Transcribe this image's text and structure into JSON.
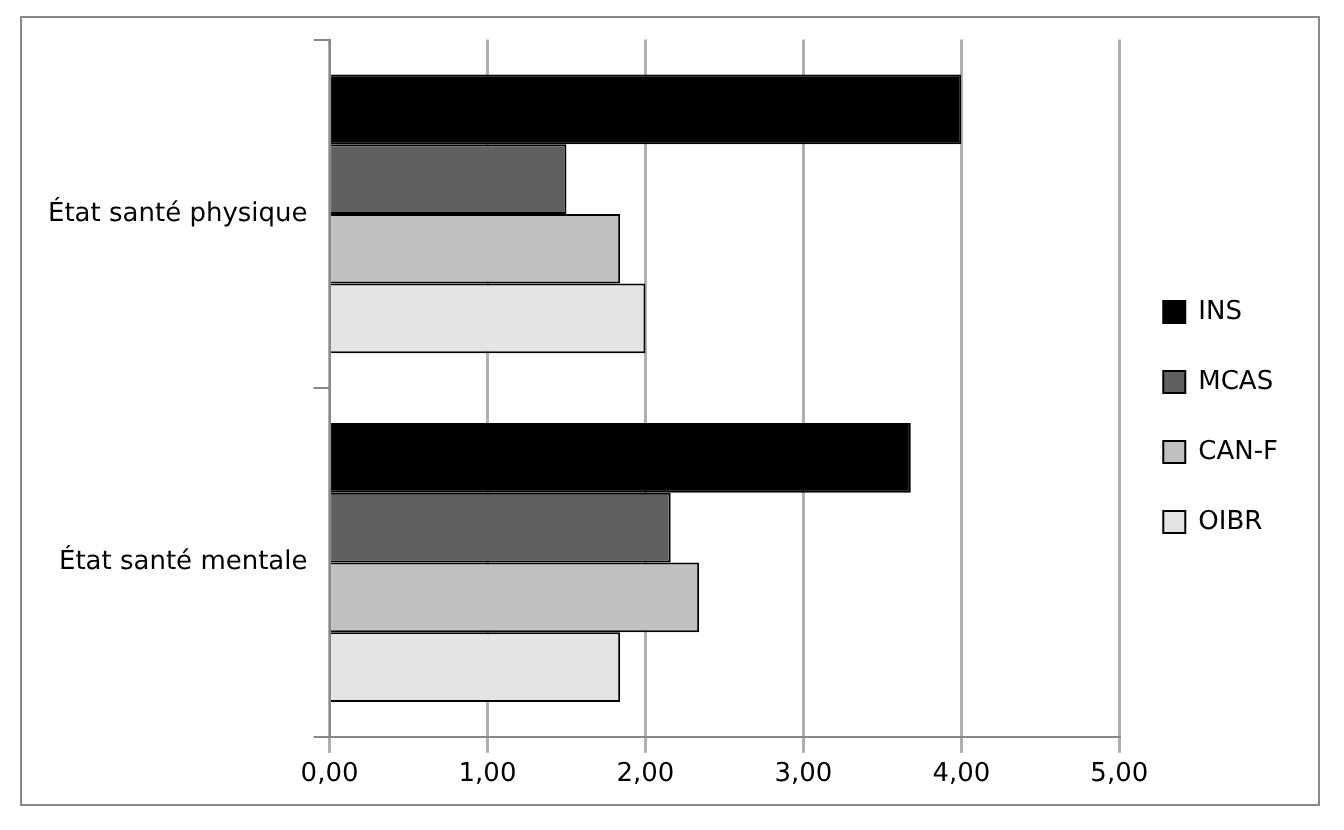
{
  "chart_data": {
    "type": "bar",
    "orientation": "horizontal",
    "categories": [
      "État santé physique",
      "État santé mentale"
    ],
    "series": [
      {
        "name": "INS",
        "color": "#000000",
        "values": [
          4.0,
          3.68
        ]
      },
      {
        "name": "MCAS",
        "color": "#606060",
        "values": [
          1.5,
          2.16
        ]
      },
      {
        "name": "CAN-F",
        "color": "#c0c0c0",
        "values": [
          1.84,
          2.34
        ]
      },
      {
        "name": "OIBR",
        "color": "#e4e4e4",
        "values": [
          2.0,
          1.84
        ]
      }
    ],
    "xlim": [
      0,
      5
    ],
    "xticks": [
      {
        "value": 0,
        "label": "0,00"
      },
      {
        "value": 1,
        "label": "1,00"
      },
      {
        "value": 2,
        "label": "2,00"
      },
      {
        "value": 3,
        "label": "3,00"
      },
      {
        "value": 4,
        "label": "4,00"
      },
      {
        "value": 5,
        "label": "5,00"
      }
    ],
    "grid": "x",
    "legend": "right"
  }
}
